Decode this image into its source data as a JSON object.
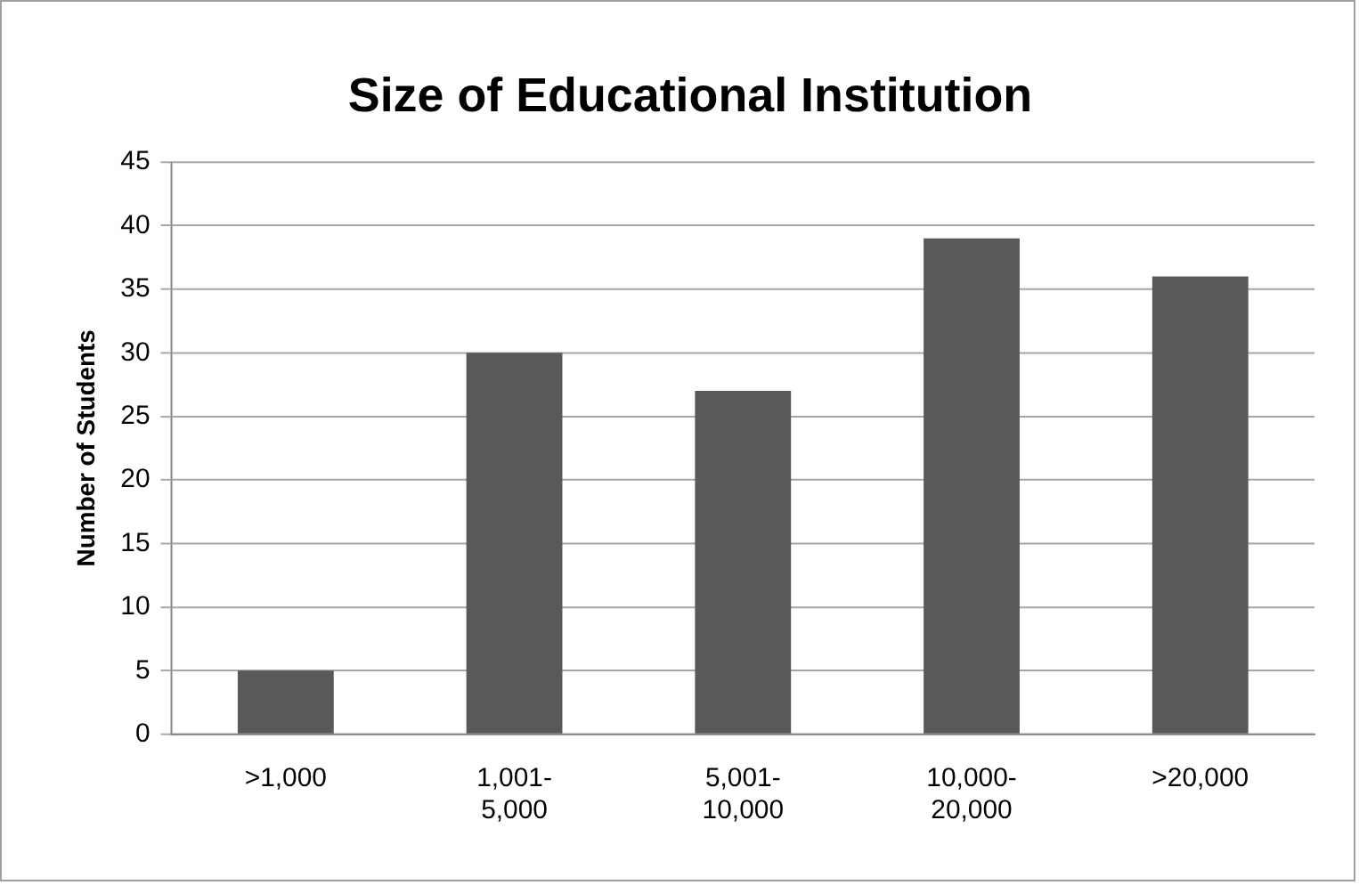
{
  "chart_data": {
    "type": "bar",
    "title": "Size of Educational Institution",
    "ylabel": "Number of Students",
    "categories": [
      ">1,000",
      "1,001-5,000",
      "5,001-10,000",
      "10,000-20,000",
      ">20,000"
    ],
    "values": [
      5,
      30,
      27,
      39,
      36
    ],
    "color": "#595959",
    "ylim": [
      0,
      45
    ],
    "yticks": [
      0,
      5,
      10,
      15,
      20,
      25,
      30,
      35,
      40,
      45
    ],
    "grid": "y"
  }
}
